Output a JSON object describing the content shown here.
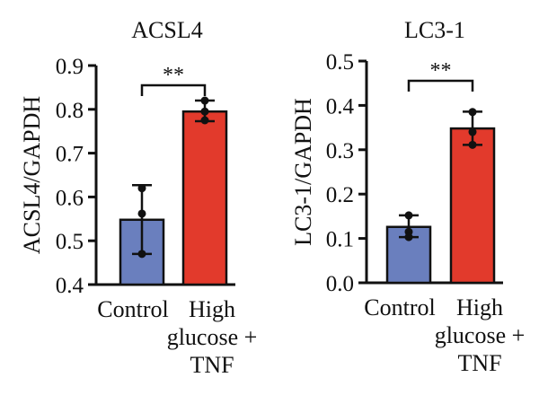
{
  "chart_data": [
    {
      "type": "bar",
      "title": "ACSL4",
      "ylabel": "ACSL4/GAPDH",
      "xlabel": "",
      "ylim": [
        0.4,
        0.9
      ],
      "yticks": [
        "0.4",
        "0.5",
        "0.6",
        "0.7",
        "0.8",
        "0.9"
      ],
      "categories": [
        {
          "lines": [
            "Control"
          ]
        },
        {
          "lines": [
            "High",
            "glucose +",
            "TNF"
          ]
        }
      ],
      "values": [
        0.548,
        0.795
      ],
      "errors": [
        {
          "low": 0.47,
          "high": 0.627
        },
        {
          "low": 0.773,
          "high": 0.82
        }
      ],
      "points": [
        [
          0.62,
          0.562,
          0.47
        ],
        [
          0.82,
          0.795,
          0.775
        ]
      ],
      "colors": [
        "#6a7fbe",
        "#e23a2c"
      ],
      "significance": {
        "label": "**",
        "between": [
          0,
          1
        ]
      }
    },
    {
      "type": "bar",
      "title": "LC3-1",
      "ylabel": "LC3-1/GAPDH",
      "xlabel": "",
      "ylim": [
        0.0,
        0.5
      ],
      "yticks": [
        "0.0",
        "0.1",
        "0.2",
        "0.3",
        "0.4",
        "0.5"
      ],
      "categories": [
        {
          "lines": [
            "Control"
          ]
        },
        {
          "lines": [
            "High",
            "glucose +",
            "TNF"
          ]
        }
      ],
      "values": [
        0.126,
        0.348
      ],
      "errors": [
        {
          "low": 0.103,
          "high": 0.152
        },
        {
          "low": 0.311,
          "high": 0.386
        }
      ],
      "points": [
        [
          0.152,
          0.115,
          0.103
        ],
        [
          0.385,
          0.34,
          0.311
        ]
      ],
      "colors": [
        "#6a7fbe",
        "#e23a2c"
      ],
      "significance": {
        "label": "**",
        "between": [
          0,
          1
        ]
      }
    }
  ]
}
